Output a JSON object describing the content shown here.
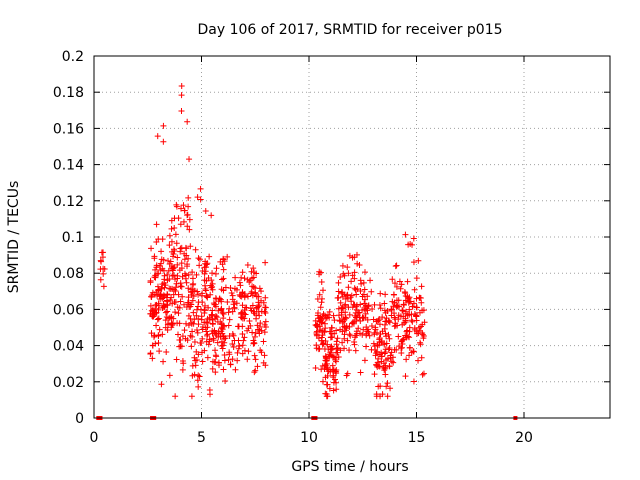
{
  "chart_data": {
    "type": "scatter",
    "title": "Day 106 of 2017, SRMTID for receiver p015",
    "xlabel": "GPS time / hours",
    "ylabel": "SRMTID / TECUs",
    "xlim": [
      0,
      24
    ],
    "ylim": [
      0,
      0.2
    ],
    "xticks": [
      0,
      5,
      10,
      15,
      20
    ],
    "yticks": [
      0,
      0.02,
      0.04,
      0.06,
      0.08,
      0.1,
      0.12,
      0.14,
      0.16,
      0.18,
      0.2
    ],
    "xtick_labels": [
      "0",
      "5",
      "10",
      "15",
      "20"
    ],
    "ytick_labels": [
      "0",
      "0.02",
      "0.04",
      "0.06",
      "0.08",
      "0.1",
      "0.12",
      "0.14",
      "0.16",
      "0.18",
      "0.2"
    ],
    "grid": true,
    "marker": "+",
    "color": "#ff0000",
    "zero_points_x": [
      0.2,
      0.3,
      2.7,
      2.8,
      10.2,
      10.3,
      19.6
    ],
    "clusters": [
      {
        "x": [
          0.3,
          0.5
        ],
        "n": 8,
        "center": 0.08,
        "spread": 0.008,
        "peak": 0.093
      },
      {
        "x": [
          2.6,
          3.5
        ],
        "n": 120,
        "center": 0.062,
        "spread": 0.018,
        "peak": 0.163
      },
      {
        "x": [
          3.5,
          4.5
        ],
        "n": 130,
        "center": 0.075,
        "spread": 0.025,
        "peak": 0.184
      },
      {
        "x": [
          4.5,
          5.5
        ],
        "n": 120,
        "center": 0.055,
        "spread": 0.018,
        "peak": 0.13
      },
      {
        "x": [
          5.5,
          6.5
        ],
        "n": 110,
        "center": 0.055,
        "spread": 0.016,
        "peak": 0.09
      },
      {
        "x": [
          6.5,
          8.0
        ],
        "n": 130,
        "center": 0.057,
        "spread": 0.013,
        "peak": 0.088
      },
      {
        "x": [
          10.3,
          10.7
        ],
        "n": 50,
        "center": 0.05,
        "spread": 0.012,
        "peak": 0.083
      },
      {
        "x": [
          10.7,
          11.3
        ],
        "n": 80,
        "center": 0.034,
        "spread": 0.012,
        "peak": 0.06
      },
      {
        "x": [
          11.3,
          13.0
        ],
        "n": 150,
        "center": 0.058,
        "spread": 0.013,
        "peak": 0.092
      },
      {
        "x": [
          13.0,
          13.8
        ],
        "n": 90,
        "center": 0.038,
        "spread": 0.012,
        "peak": 0.07
      },
      {
        "x": [
          13.8,
          15.4
        ],
        "n": 140,
        "center": 0.056,
        "spread": 0.015,
        "peak": 0.102
      }
    ]
  }
}
